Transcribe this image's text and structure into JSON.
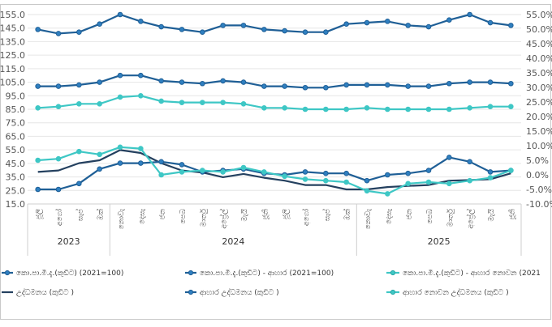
{
  "chart_data": {
    "type": "line",
    "years": [
      {
        "label": "2023",
        "start": 0,
        "end": 3
      },
      {
        "label": "2024",
        "start": 4,
        "end": 15
      },
      {
        "label": "2025",
        "start": 16,
        "end": 23
      }
    ],
    "categories": [
      "ජූලි",
      "අගෝ",
      "සැප්",
      "ඔක්",
      "නොවැ",
      "දෙසැ",
      "ජන",
      "පෙබ",
      "මාර්තු",
      "අප්‍රේල්",
      "මැයි",
      "ජූනි",
      "ජූලි",
      "අගෝ",
      "සැප්",
      "ඔක්",
      "නොවැ",
      "දෙසැ",
      "ජන",
      "පෙබ",
      "මාර්තු",
      "අප්‍රේල්",
      "මැයි",
      "ජූනි"
    ],
    "left_axis": {
      "min": 15,
      "max": 155,
      "step": 10
    },
    "right_axis": {
      "min": -10,
      "max": 55,
      "step": 5,
      "unit": "%"
    },
    "left_ticks": [
      "15.0",
      "25.0",
      "35.0",
      "45.0",
      "55.0",
      "65.0",
      "75.0",
      "85.0",
      "95.0",
      "105.0",
      "115.0",
      "125.0",
      "135.0",
      "145.0",
      "155.0"
    ],
    "right_ticks": [
      "-10.0%",
      "-5.0%",
      "0.0%",
      "5.0%",
      "10.0%",
      "15.0%",
      "20.0%",
      "25.0%",
      "30.0%",
      "35.0%",
      "40.0%",
      "45.0%",
      "50.0%",
      "55.0%"
    ],
    "series": [
      {
        "name": "කො.පා.මි.දැ.(කුඩිට) (2021=100)",
        "axis": "left",
        "color": "#1f5f96",
        "marker": true,
        "values": [
          144,
          141,
          142,
          148,
          155,
          150,
          146,
          144,
          142,
          147,
          147,
          144,
          143,
          142,
          142,
          148,
          149,
          150,
          147,
          146,
          151,
          155,
          149,
          147
        ]
      },
      {
        "name": "කො.පා.මි.දැ.(කුඩිට) - ආහාර (2021=100)",
        "axis": "left",
        "color": "#1f5f96",
        "marker": true,
        "values": [
          102,
          102,
          103,
          105,
          110,
          110,
          106,
          105,
          104,
          106,
          105,
          102,
          102,
          101,
          101,
          103,
          103,
          103,
          102,
          102,
          104,
          105,
          105,
          104
        ]
      },
      {
        "name": "කො.පා.මි.දැ.(කුඩිට) - ආහාර නොවන (2021=100)",
        "axis": "left",
        "color": "#3ec7c5",
        "marker": true,
        "values": [
          86,
          87,
          89,
          89,
          94,
          95,
          91,
          90,
          90,
          90,
          89,
          86,
          86,
          85,
          85,
          85,
          86,
          85,
          85,
          85,
          85,
          86,
          87,
          87
        ]
      },
      {
        "name": "උද්ධමනය (කුඩිට)",
        "axis": "right",
        "color": "#24405f",
        "marker": false,
        "values": [
          1.0,
          1.5,
          4.0,
          5.0,
          8.5,
          7.5,
          4.0,
          1.5,
          0.8,
          -0.8,
          0.3,
          -1.0,
          -2.0,
          -3.5,
          -3.5,
          -5.0,
          -5.0,
          -4.2,
          -3.8,
          -3.5,
          -2.0,
          -1.8,
          -1.5,
          0.5
        ]
      },
      {
        "name": "ආහාර උද්ධමනය (කුඩිට)",
        "axis": "right",
        "color": "#1f5f96",
        "marker": true,
        "values": [
          -5.0,
          -5.0,
          -3.0,
          2.0,
          4.0,
          4.0,
          4.5,
          3.5,
          1.0,
          1.5,
          2.0,
          0.5,
          0.0,
          1.0,
          0.5,
          0.5,
          -2.0,
          0.0,
          0.5,
          1.5,
          6.0,
          4.5,
          1.0,
          1.5
        ]
      },
      {
        "name": "ආහාර නොවන උද්ධමනය (කුඩිට)",
        "axis": "right",
        "color": "#3ec7c5",
        "marker": true,
        "values": [
          5.0,
          5.5,
          8.0,
          7.0,
          9.5,
          9.0,
          0.0,
          1.0,
          1.5,
          1.0,
          2.5,
          1.0,
          -0.5,
          -1.5,
          -2.0,
          -2.5,
          -5.5,
          -6.5,
          -3.0,
          -2.5,
          -3.0,
          -2.0,
          -1.0,
          1.5
        ]
      }
    ]
  },
  "legend": {
    "items": [
      {
        "label": "කො.පා.මි.දැ.(කුඩිට) (2021=100)"
      },
      {
        "label": "කො.පා.මි.දැ.(කුඩිට) - ආහාර (2021=100)"
      },
      {
        "label": "කො.පා.මි.දැ.(කුඩිට) - ආහාර නොවන (2021"
      },
      {
        "label": "උද්ධමනය (කුඩිට )"
      },
      {
        "label": "ආහාර උද්ධමනය (කුඩිට )"
      },
      {
        "label": "ආහාර නොවන උද්ධමනය (කුඩිට )"
      }
    ]
  }
}
